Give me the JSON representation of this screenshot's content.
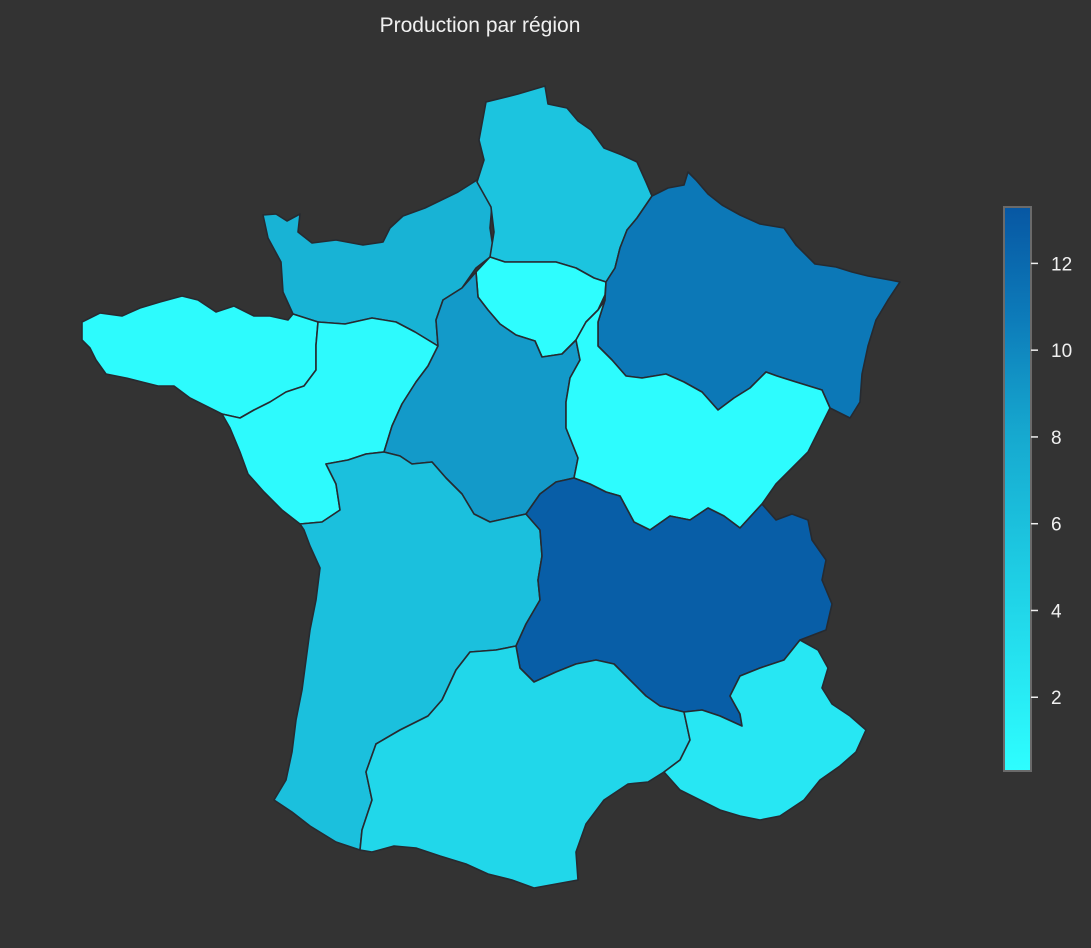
{
  "title": "Production par région",
  "colors": {
    "background": "#333333",
    "border": "#262a30",
    "colorbar_outline": "#6a6a6a",
    "scale_low": "#2efeff",
    "scale_high": "#0757a3"
  },
  "colorbar": {
    "min": 0.3,
    "max": 13.3,
    "ticks": [
      {
        "value": 2,
        "label": "2"
      },
      {
        "value": 4,
        "label": "4"
      },
      {
        "value": 6,
        "label": "6"
      },
      {
        "value": 8,
        "label": "8"
      },
      {
        "value": 10,
        "label": "10"
      },
      {
        "value": 12,
        "label": "12"
      }
    ]
  },
  "chart_data": {
    "type": "choropleth",
    "title": "Production par région",
    "colorbar_range": [
      0.3,
      13.3
    ],
    "colorbar_ticks": [
      2,
      4,
      6,
      8,
      10,
      12
    ],
    "legend_position": "right",
    "grid": false,
    "regions": [
      {
        "key": "hauts-de-france",
        "value": 5.6
      },
      {
        "key": "normandie",
        "value": 7.1
      },
      {
        "key": "bretagne",
        "value": 0.6
      },
      {
        "key": "ile-de-france",
        "value": 0.4
      },
      {
        "key": "grand-est",
        "value": 11.0
      },
      {
        "key": "pays-de-la-loire",
        "value": 0.7
      },
      {
        "key": "centre-val-de-loire",
        "value": 8.9
      },
      {
        "key": "bourgogne-franche-comte",
        "value": 0.5
      },
      {
        "key": "nouvelle-aquitaine",
        "value": 6.0
      },
      {
        "key": "auvergne-rhone-alpes",
        "value": 12.8
      },
      {
        "key": "occitanie",
        "value": 3.9
      },
      {
        "key": "provence-alpes-cote-dazur",
        "value": 2.4
      }
    ]
  }
}
